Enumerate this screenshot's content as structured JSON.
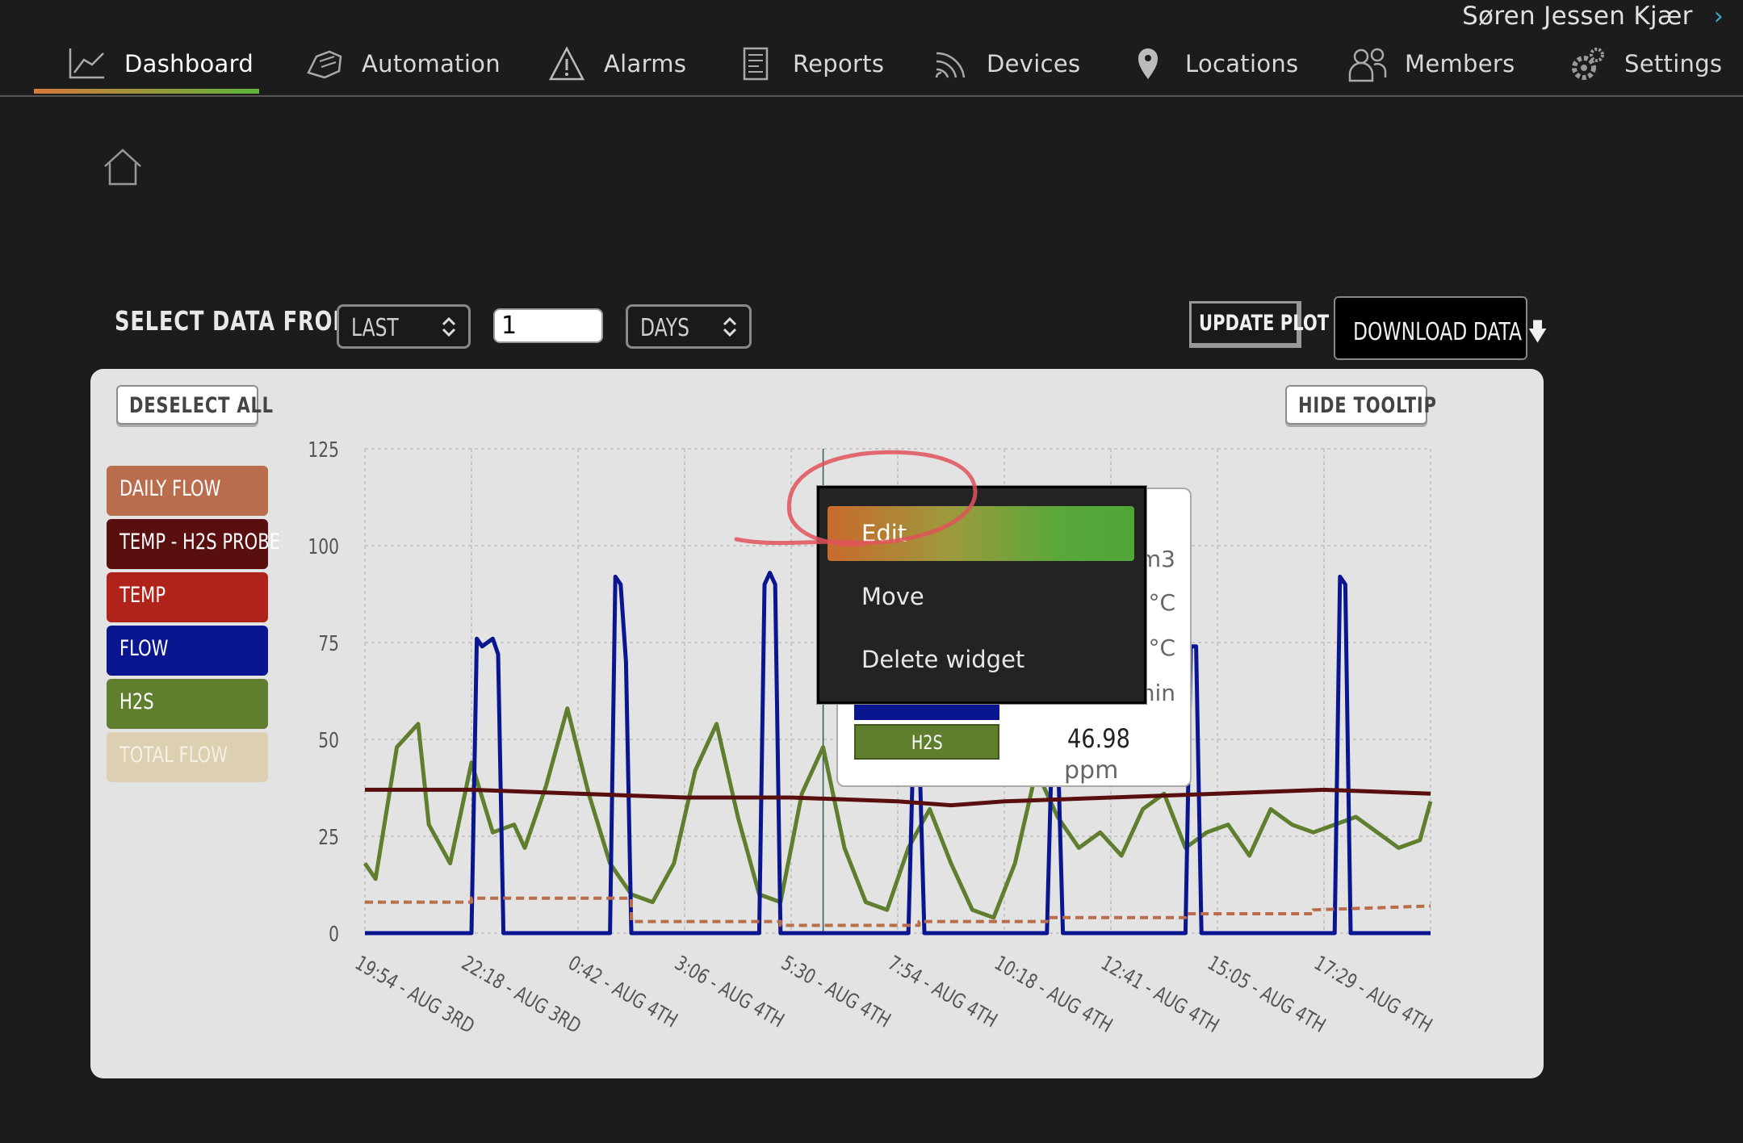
{
  "user": {
    "name": "Søren Jessen Kjær",
    "chevron": "›"
  },
  "nav": {
    "items": [
      {
        "label": "Dashboard",
        "icon": "chart-line-icon"
      },
      {
        "label": "Automation",
        "icon": "hand-icon"
      },
      {
        "label": "Alarms",
        "icon": "warning-icon"
      },
      {
        "label": "Reports",
        "icon": "report-icon"
      },
      {
        "label": "Devices",
        "icon": "signal-icon"
      },
      {
        "label": "Locations",
        "icon": "map-pin-icon"
      },
      {
        "label": "Members",
        "icon": "members-icon"
      },
      {
        "label": "Settings",
        "icon": "gear-icon"
      }
    ],
    "active": "Dashboard",
    "accent_start": "#d6793a",
    "accent_end": "#5fb63a"
  },
  "controls": {
    "select_label": "SELECT DATA FROM:",
    "range_mode": "LAST",
    "range_value": "1",
    "range_unit": "DAYS",
    "update_label": "UPDATE PLOT",
    "download_label": "DOWNLOAD DATA"
  },
  "panel": {
    "deselect_label": "DESELECT ALL",
    "hide_tooltip_label": "HIDE TOOLTIP",
    "legend": [
      {
        "label": "DAILY FLOW",
        "color": "#b96d4d"
      },
      {
        "label": "TEMP - H2S PROBE",
        "color": "#5a0f0f"
      },
      {
        "label": "TEMP",
        "color": "#b0231a"
      },
      {
        "label": "FLOW",
        "color": "#0a1690"
      },
      {
        "label": "H2S",
        "color": "#5f7f2f"
      },
      {
        "label": "TOTAL FLOW",
        "color": "#dccfb2",
        "inactive": true
      }
    ]
  },
  "tooltip": {
    "units": [
      "m3",
      "°C",
      "°C",
      "min"
    ],
    "h2s_label": "H2S",
    "h2s_value": "46.98",
    "h2s_unit": "ppm"
  },
  "context_menu": {
    "items": [
      "Edit",
      "Move",
      "Delete widget"
    ],
    "highlighted": "Edit"
  },
  "chart_data": {
    "type": "line",
    "ylim": [
      0,
      125
    ],
    "yticks": [
      "0",
      "25",
      "50",
      "75",
      "100",
      "125"
    ],
    "xticks": [
      "19:54 - AUG 3RD",
      "22:18 - AUG 3RD",
      "0:42 - AUG 4TH",
      "3:06 - AUG 4TH",
      "5:30 - AUG 4TH",
      "7:54 - AUG 4TH",
      "10:18 - AUG 4TH",
      "12:41 - AUG 4TH",
      "15:05 - AUG 4TH",
      "17:29 - AUG 4TH"
    ],
    "series": [
      {
        "name": "H2S",
        "color": "#5f7f2f",
        "style": "solid",
        "t": [
          0,
          0.1,
          0.3,
          0.5,
          0.6,
          0.8,
          1.0,
          1.2,
          1.4,
          1.5,
          1.7,
          1.9,
          2.1,
          2.3,
          2.5,
          2.7,
          2.9,
          3.1,
          3.3,
          3.5,
          3.7,
          3.9,
          4.1,
          4.3,
          4.5,
          4.7,
          4.9,
          5.1,
          5.3,
          5.5,
          5.7,
          5.9,
          6.1,
          6.3,
          6.5,
          6.7,
          6.9,
          7.1,
          7.3,
          7.5,
          7.7,
          7.9,
          8.1,
          8.3,
          8.5,
          8.7,
          8.9,
          9.1,
          9.3,
          9.5,
          9.7,
          9.9,
          10.0
        ],
        "y": [
          18,
          14,
          48,
          54,
          28,
          18,
          44,
          26,
          28,
          22,
          38,
          58,
          36,
          18,
          10,
          8,
          18,
          42,
          54,
          30,
          10,
          8,
          36,
          48,
          22,
          8,
          6,
          22,
          32,
          18,
          6,
          4,
          18,
          42,
          30,
          22,
          26,
          20,
          32,
          36,
          22,
          26,
          28,
          20,
          32,
          28,
          26,
          28,
          30,
          26,
          22,
          24,
          34
        ]
      },
      {
        "name": "FLOW",
        "color": "#0a1690",
        "style": "solid",
        "t": [
          0,
          1.0,
          1.05,
          1.1,
          1.2,
          1.25,
          1.3,
          1.35,
          2.3,
          2.35,
          2.4,
          2.45,
          2.5,
          3.7,
          3.75,
          3.8,
          3.85,
          3.9,
          5.1,
          5.15,
          5.2,
          5.25,
          6.4,
          6.45,
          6.5,
          6.55,
          7.7,
          7.75,
          7.8,
          7.85,
          9.1,
          9.15,
          9.2,
          9.25,
          10.0
        ],
        "y": [
          0,
          0,
          76,
          74,
          76,
          72,
          0,
          0,
          0,
          92,
          90,
          70,
          0,
          0,
          90,
          93,
          90,
          0,
          0,
          52,
          50,
          0,
          0,
          52,
          50,
          0,
          0,
          74,
          74,
          0,
          0,
          92,
          90,
          0,
          0
        ]
      },
      {
        "name": "TEMP - H2S PROBE",
        "color": "#5a0f0f",
        "style": "solid",
        "t": [
          0,
          1.0,
          2.0,
          3.0,
          4.0,
          5.0,
          5.5,
          6.0,
          7.0,
          8.0,
          9.0,
          10.0
        ],
        "y": [
          37,
          37,
          36,
          35,
          35,
          34,
          33,
          34,
          35,
          36,
          37,
          36
        ]
      },
      {
        "name": "DAILY FLOW",
        "color": "#b96d4d",
        "style": "dashed",
        "t": [
          0,
          1.0,
          1.0,
          2.5,
          2.5,
          3.9,
          3.9,
          5.2,
          5.2,
          6.4,
          6.4,
          7.7,
          7.7,
          8.9,
          8.9,
          10.0
        ],
        "y": [
          8,
          8,
          9,
          9,
          3,
          3,
          2,
          2,
          3,
          3,
          4,
          4,
          5,
          5,
          6,
          7
        ]
      }
    ]
  }
}
